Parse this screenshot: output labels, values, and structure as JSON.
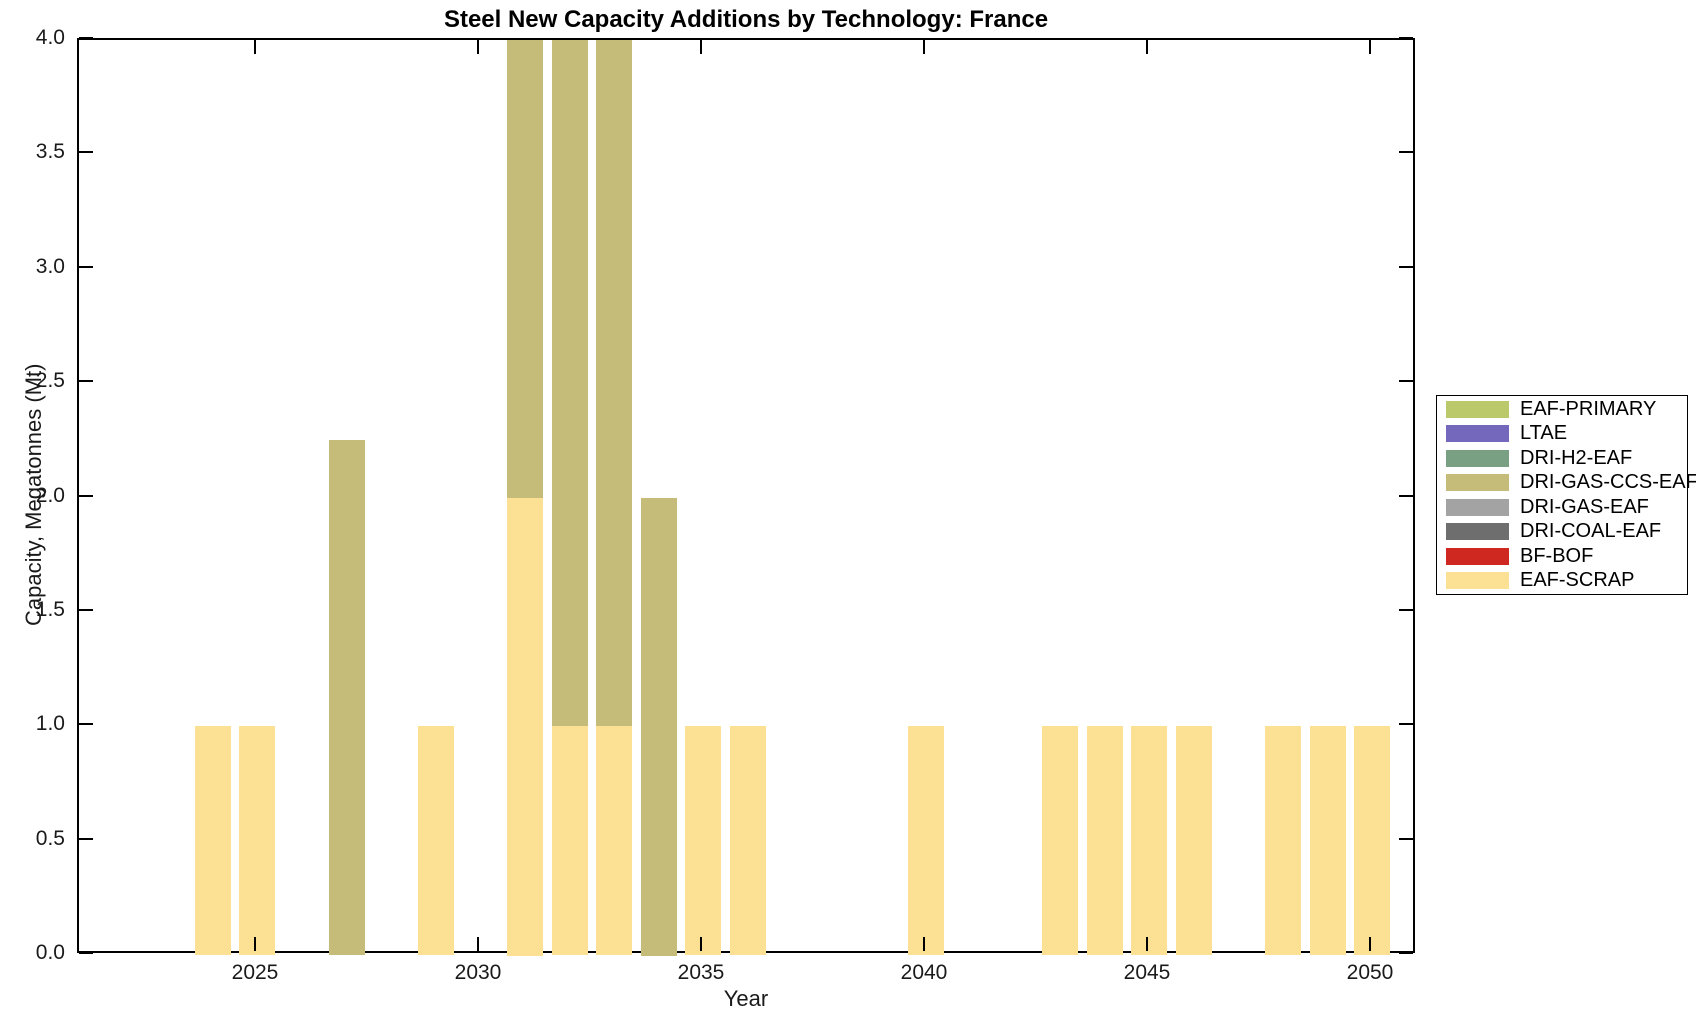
{
  "figure": {
    "title": "Steel New Capacity Additions by Technology: France",
    "xlabel": "Year",
    "ylabel": "Capacity, Megatonnes (Mt)"
  },
  "chart_data": {
    "type": "bar",
    "stacked": true,
    "title": "Steel New Capacity Additions by Technology: France",
    "xlabel": "Year",
    "ylabel": "Capacity, Megatonnes (Mt)",
    "xlim": [
      2021,
      2051
    ],
    "ylim": [
      0.0,
      4.0
    ],
    "xticks": [
      2025,
      2030,
      2035,
      2040,
      2045,
      2050
    ],
    "ytick_labels": [
      "0.0",
      "0.5",
      "1.0",
      "1.5",
      "2.0",
      "2.5",
      "3.0",
      "3.5",
      "4.0"
    ],
    "grid": false,
    "bar_width_year_fraction": 0.8,
    "legend_position": "right-outside",
    "categories": [
      2024,
      2025,
      2027,
      2029,
      2031,
      2032,
      2033,
      2034,
      2035,
      2036,
      2040,
      2043,
      2044,
      2045,
      2046,
      2048,
      2049,
      2050
    ],
    "series": [
      {
        "name": "EAF-SCRAP",
        "color": "#fce195",
        "values": [
          1,
          1,
          0,
          1,
          2,
          1,
          1,
          0,
          1,
          1,
          1,
          1,
          1,
          1,
          1,
          1,
          1,
          1
        ]
      },
      {
        "name": "BF-BOF",
        "color": "#cf2820",
        "values": [
          0,
          0,
          0,
          0,
          0,
          0,
          0,
          0,
          0,
          0,
          0,
          0,
          0,
          0,
          0,
          0,
          0,
          0
        ]
      },
      {
        "name": "DRI-COAL-EAF",
        "color": "#6e6e6e",
        "values": [
          0,
          0,
          0,
          0,
          0,
          0,
          0,
          0,
          0,
          0,
          0,
          0,
          0,
          0,
          0,
          0,
          0,
          0
        ]
      },
      {
        "name": "DRI-GAS-EAF",
        "color": "#a3a3a3",
        "values": [
          0,
          0,
          0,
          0,
          0,
          0,
          0,
          0,
          0,
          0,
          0,
          0,
          0,
          0,
          0,
          0,
          0,
          0
        ]
      },
      {
        "name": "DRI-GAS-CCS-EAF",
        "color": "#c5bc7a",
        "values": [
          0,
          0,
          2.25,
          0,
          2,
          3,
          3,
          2,
          0,
          0,
          0,
          0,
          0,
          0,
          0,
          0,
          0,
          0
        ]
      },
      {
        "name": "DRI-H2-EAF",
        "color": "#79a083",
        "values": [
          0,
          0,
          0,
          0,
          0,
          0,
          0,
          0,
          0,
          0,
          0,
          0,
          0,
          0,
          0,
          0,
          0,
          0
        ]
      },
      {
        "name": "LTAE",
        "color": "#7468bd",
        "values": [
          0,
          0,
          0,
          0,
          0,
          0,
          0,
          0,
          0,
          0,
          0,
          0,
          0,
          0,
          0,
          0,
          0,
          0
        ]
      },
      {
        "name": "EAF-PRIMARY",
        "color": "#bcc96a",
        "values": [
          0,
          0,
          0,
          0,
          0,
          0,
          0,
          0,
          0,
          0,
          0,
          0,
          0,
          0,
          0,
          0,
          0,
          0
        ]
      }
    ]
  },
  "legend": {
    "entries": [
      {
        "label": "EAF-PRIMARY",
        "color": "#bcc96a"
      },
      {
        "label": "LTAE",
        "color": "#7468bd"
      },
      {
        "label": "DRI-H2-EAF",
        "color": "#79a083"
      },
      {
        "label": "DRI-GAS-CCS-EAF",
        "color": "#c5bc7a"
      },
      {
        "label": "DRI-GAS-EAF",
        "color": "#a3a3a3"
      },
      {
        "label": "DRI-COAL-EAF",
        "color": "#6e6e6e"
      },
      {
        "label": "BF-BOF",
        "color": "#cf2820"
      },
      {
        "label": "EAF-SCRAP",
        "color": "#fce195"
      }
    ]
  }
}
